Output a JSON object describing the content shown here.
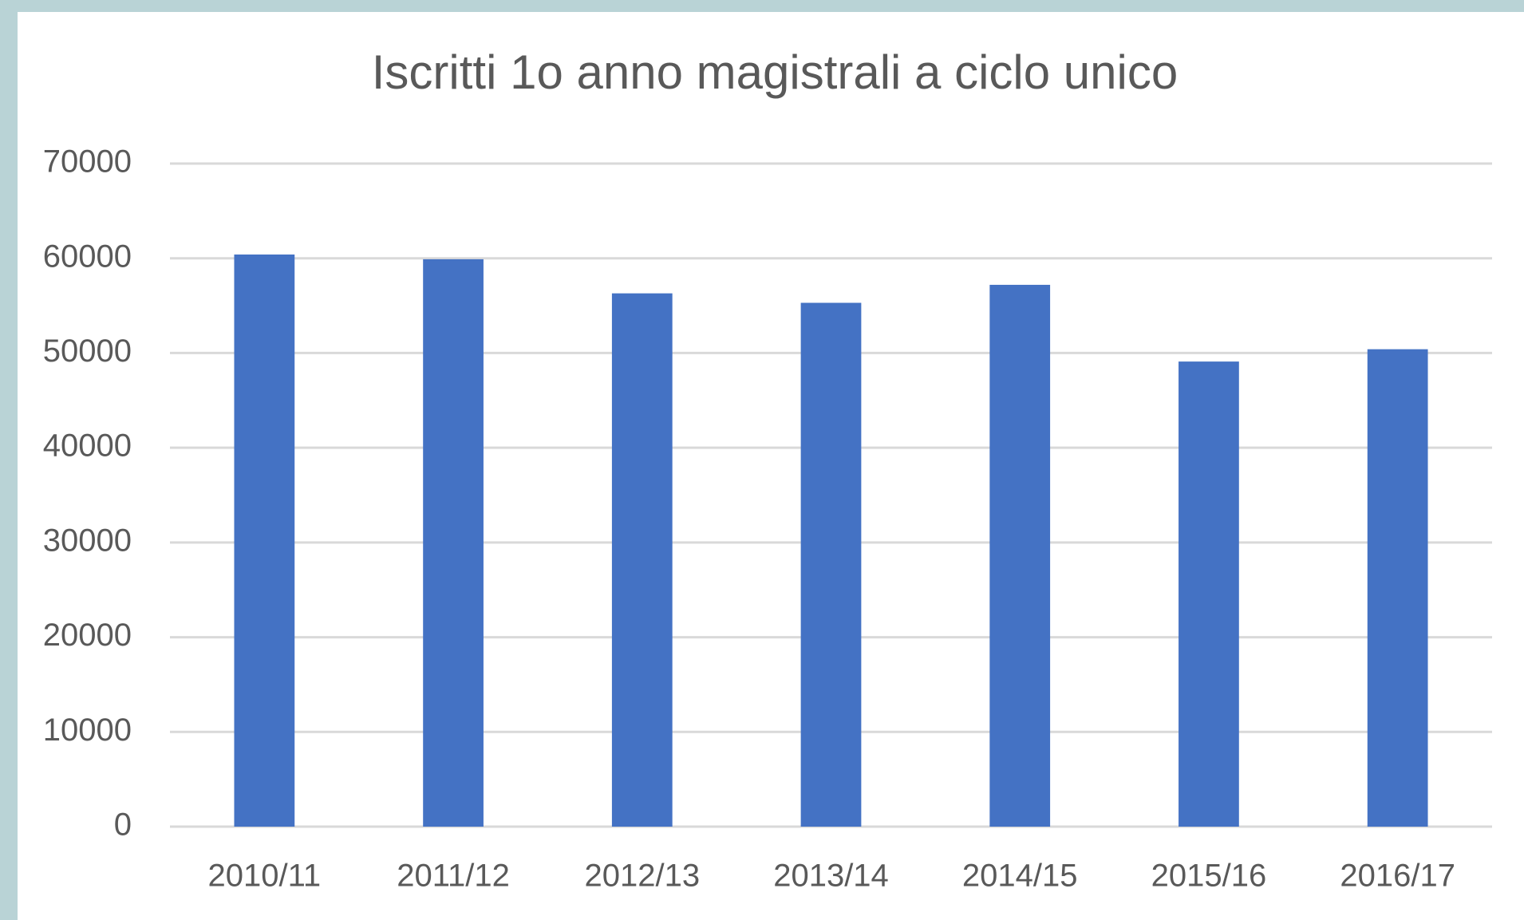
{
  "chart_data": {
    "type": "bar",
    "title": "Iscritti 1o anno magistrali a ciclo unico",
    "categories": [
      "2010/11",
      "2011/12",
      "2012/13",
      "2013/14",
      "2014/15",
      "2015/16",
      "2016/17"
    ],
    "values": [
      60400,
      59900,
      56300,
      55300,
      57200,
      49100,
      50400
    ],
    "color": "#4472c4",
    "ylim": [
      0,
      70000
    ],
    "yticks": [
      0,
      10000,
      20000,
      30000,
      40000,
      50000,
      60000,
      70000
    ],
    "grid": true
  }
}
